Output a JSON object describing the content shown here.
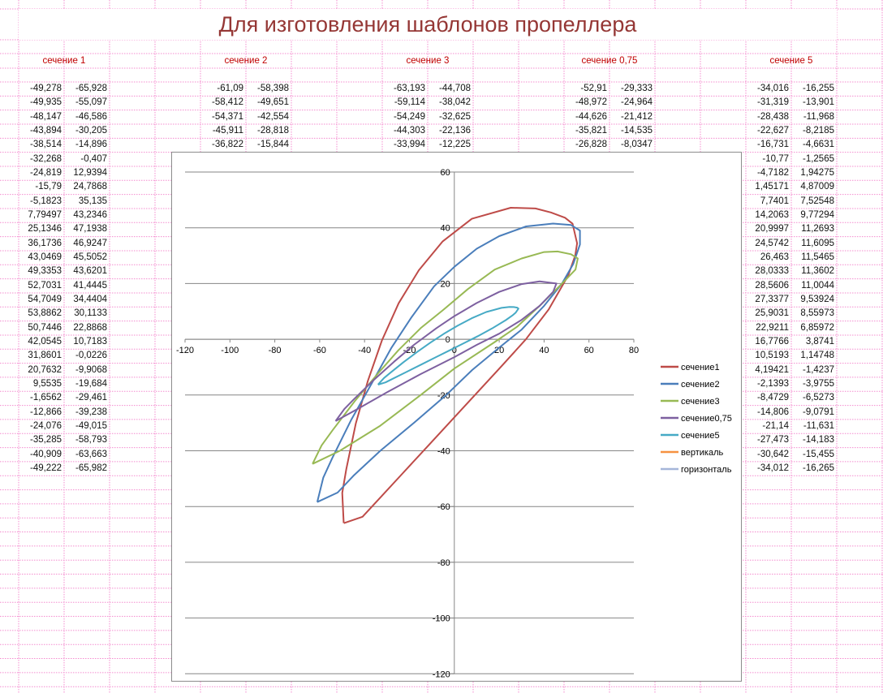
{
  "title": "Для изготовления шаблонов пропеллера",
  "sections": [
    {
      "label": "сечение 1",
      "rows": [
        [
          "-49,278",
          "-65,928"
        ],
        [
          "-49,935",
          "-55,097"
        ],
        [
          "-48,147",
          "-46,586"
        ],
        [
          "-43,894",
          "-30,205"
        ],
        [
          "-38,514",
          "-14,896"
        ],
        [
          "-32,268",
          "-0,407"
        ],
        [
          "-24,819",
          "12,9394"
        ],
        [
          "-15,79",
          "24,7868"
        ],
        [
          "-5,1823",
          "35,135"
        ],
        [
          "7,79497",
          "43,2346"
        ],
        [
          "25,1346",
          "47,1938"
        ],
        [
          "36,1736",
          "46,9247"
        ],
        [
          "43,0469",
          "45,5052"
        ],
        [
          "49,3353",
          "43,6201"
        ],
        [
          "52,7031",
          "41,4445"
        ],
        [
          "54,7049",
          "34,4404"
        ],
        [
          "53,8862",
          "30,1133"
        ],
        [
          "50,7446",
          "22,8868"
        ],
        [
          "42,0545",
          "10,7183"
        ],
        [
          "31,8601",
          "-0,0226"
        ],
        [
          "20,7632",
          "-9,9068"
        ],
        [
          "9,5535",
          "-19,684"
        ],
        [
          "-1,6562",
          "-29,461"
        ],
        [
          "-12,866",
          "-39,238"
        ],
        [
          "-24,076",
          "-49,015"
        ],
        [
          "-35,285",
          "-58,793"
        ],
        [
          "-40,909",
          "-63,663"
        ],
        [
          "-49,222",
          "-65,982"
        ]
      ]
    },
    {
      "label": "сечение 2",
      "rows": [
        [
          "-61,09",
          "-58,398"
        ],
        [
          "-58,412",
          "-49,651"
        ],
        [
          "-54,371",
          "-42,554"
        ],
        [
          "-45,911",
          "-28,818"
        ],
        [
          "-36,822",
          "-15,844"
        ]
      ]
    },
    {
      "label": "сечение 3",
      "rows": [
        [
          "-63,193",
          "-44,708"
        ],
        [
          "-59,114",
          "-38,042"
        ],
        [
          "-54,249",
          "-32,625"
        ],
        [
          "-44,303",
          "-22,136"
        ],
        [
          "-33,994",
          "-12,225"
        ]
      ]
    },
    {
      "label": "сечение 0,75",
      "rows": [
        [
          "-52,91",
          "-29,333"
        ],
        [
          "-48,972",
          "-24,964"
        ],
        [
          "-44,626",
          "-21,412"
        ],
        [
          "-35,821",
          "-14,535"
        ],
        [
          "-26,828",
          "-8,0347"
        ]
      ]
    },
    {
      "label": "сечение 5",
      "rows": [
        [
          "-34,016",
          "-16,255"
        ],
        [
          "-31,319",
          "-13,901"
        ],
        [
          "-28,438",
          "-11,968"
        ],
        [
          "-22,627",
          "-8,2185"
        ],
        [
          "-16,731",
          "-4,6631"
        ],
        [
          "-10,77",
          "-1,2565"
        ],
        [
          "-4,7182",
          "1,94275"
        ],
        [
          "1,45171",
          "4,87009"
        ],
        [
          "7,7401",
          "7,52548"
        ],
        [
          "14,2063",
          "9,77294"
        ],
        [
          "20,9997",
          "11,2693"
        ],
        [
          "24,5742",
          "11,6095"
        ],
        [
          "26,463",
          "11,5465"
        ],
        [
          "28,0333",
          "11,3602"
        ],
        [
          "28,5606",
          "11,0044"
        ],
        [
          "27,3377",
          "9,53924"
        ],
        [
          "25,9031",
          "8,55973"
        ],
        [
          "22,9211",
          "6,85972"
        ],
        [
          "16,7766",
          "3,8741"
        ],
        [
          "10,5193",
          "1,14748"
        ],
        [
          "4,19421",
          "-1,4237"
        ],
        [
          "-2,1393",
          "-3,9755"
        ],
        [
          "-8,4729",
          "-6,5273"
        ],
        [
          "-14,806",
          "-9,0791"
        ],
        [
          "-21,14",
          "-11,631"
        ],
        [
          "-27,473",
          "-14,183"
        ],
        [
          "-30,642",
          "-15,455"
        ],
        [
          "-34,012",
          "-16,265"
        ]
      ]
    }
  ],
  "chart_data": {
    "type": "scatter",
    "title": "",
    "xlabel": "",
    "ylabel": "",
    "xlim": [
      -120,
      80
    ],
    "ylim": [
      -120,
      60
    ],
    "xticks": [
      -120,
      -100,
      -80,
      -60,
      -40,
      -20,
      0,
      20,
      40,
      60,
      80
    ],
    "yticks": [
      -120,
      -100,
      -80,
      -60,
      -40,
      -20,
      0,
      20,
      40,
      60
    ],
    "grid": "horizontal",
    "legend": "right",
    "series": [
      {
        "name": "сечение1",
        "color": "#be4b48",
        "points": [
          [
            -49.278,
            -65.928
          ],
          [
            -49.935,
            -55.097
          ],
          [
            -48.147,
            -46.586
          ],
          [
            -43.894,
            -30.205
          ],
          [
            -38.514,
            -14.896
          ],
          [
            -32.268,
            -0.407
          ],
          [
            -24.819,
            12.9394
          ],
          [
            -15.79,
            24.7868
          ],
          [
            -5.1823,
            35.135
          ],
          [
            7.79497,
            43.2346
          ],
          [
            25.1346,
            47.1938
          ],
          [
            36.1736,
            46.9247
          ],
          [
            43.0469,
            45.5052
          ],
          [
            49.3353,
            43.6201
          ],
          [
            52.7031,
            41.4445
          ],
          [
            54.7049,
            34.4404
          ],
          [
            53.8862,
            30.1133
          ],
          [
            50.7446,
            22.8868
          ],
          [
            42.0545,
            10.7183
          ],
          [
            31.8601,
            -0.0226
          ],
          [
            20.7632,
            -9.9068
          ],
          [
            9.5535,
            -19.684
          ],
          [
            -1.6562,
            -29.461
          ],
          [
            -12.866,
            -39.238
          ],
          [
            -24.076,
            -49.015
          ],
          [
            -35.285,
            -58.793
          ],
          [
            -40.909,
            -63.663
          ],
          [
            -49.222,
            -65.982
          ]
        ]
      },
      {
        "name": "сечение2",
        "color": "#4a7ebb",
        "points": [
          [
            -61.09,
            -58.398
          ],
          [
            -58.412,
            -49.651
          ],
          [
            -54.371,
            -42.554
          ],
          [
            -45.911,
            -28.818
          ],
          [
            -36.822,
            -15.844
          ],
          [
            -28,
            -3
          ],
          [
            -19,
            8
          ],
          [
            -9,
            19
          ],
          [
            0,
            26
          ],
          [
            10,
            32.5
          ],
          [
            20,
            37
          ],
          [
            32,
            40.5
          ],
          [
            44,
            41.5
          ],
          [
            52,
            41
          ],
          [
            56,
            39
          ],
          [
            56,
            34
          ],
          [
            53,
            27
          ],
          [
            48,
            20
          ],
          [
            40,
            12
          ],
          [
            30,
            3.5
          ],
          [
            20,
            -3
          ],
          [
            8,
            -11
          ],
          [
            -3.6,
            -20
          ],
          [
            -18,
            -30
          ],
          [
            -33,
            -40
          ],
          [
            -45,
            -49
          ],
          [
            -52,
            -55
          ],
          [
            -61.09,
            -58.398
          ]
        ]
      },
      {
        "name": "сечение3",
        "color": "#98b954",
        "points": [
          [
            -63.193,
            -44.708
          ],
          [
            -59.114,
            -38.042
          ],
          [
            -54.249,
            -32.625
          ],
          [
            -44.303,
            -22.136
          ],
          [
            -33.994,
            -12.225
          ],
          [
            -25,
            -4
          ],
          [
            -15,
            4
          ],
          [
            -5,
            10.5
          ],
          [
            6,
            18
          ],
          [
            18,
            25
          ],
          [
            30,
            29
          ],
          [
            40,
            31.3
          ],
          [
            46,
            31.5
          ],
          [
            52,
            30.5
          ],
          [
            55,
            29
          ],
          [
            54,
            25
          ],
          [
            48,
            20
          ],
          [
            38,
            12
          ],
          [
            28,
            4.5
          ],
          [
            18,
            -1
          ],
          [
            0,
            -10.5
          ],
          [
            -15,
            -20
          ],
          [
            -33,
            -31
          ],
          [
            -51,
            -40
          ],
          [
            -63.193,
            -44.708
          ]
        ]
      },
      {
        "name": "сечение0,75",
        "color": "#7d60a0",
        "points": [
          [
            -52.91,
            -29.333
          ],
          [
            -48.972,
            -24.964
          ],
          [
            -44.626,
            -21.412
          ],
          [
            -35.821,
            -14.535
          ],
          [
            -26.828,
            -8.0347
          ],
          [
            -18,
            -2
          ],
          [
            -8,
            4
          ],
          [
            0,
            8.3
          ],
          [
            10,
            13
          ],
          [
            20,
            17
          ],
          [
            30,
            19.8
          ],
          [
            38,
            20.8
          ],
          [
            45.5,
            20
          ],
          [
            44,
            17
          ],
          [
            38,
            12
          ],
          [
            30,
            7
          ],
          [
            20,
            2
          ],
          [
            10,
            -2
          ],
          [
            0,
            -6.4
          ],
          [
            -15,
            -12.5
          ],
          [
            -30,
            -19
          ],
          [
            -42,
            -24.5
          ],
          [
            -52.91,
            -29.333
          ]
        ]
      },
      {
        "name": "сечение5",
        "color": "#46aac5",
        "points": [
          [
            -34.016,
            -16.255
          ],
          [
            -31.319,
            -13.901
          ],
          [
            -28.438,
            -11.968
          ],
          [
            -22.627,
            -8.2185
          ],
          [
            -16.731,
            -4.6631
          ],
          [
            -10.77,
            -1.2565
          ],
          [
            -4.7182,
            1.94275
          ],
          [
            1.45171,
            4.87009
          ],
          [
            7.7401,
            7.52548
          ],
          [
            14.2063,
            9.77294
          ],
          [
            20.9997,
            11.2693
          ],
          [
            24.5742,
            11.6095
          ],
          [
            26.463,
            11.5465
          ],
          [
            28.0333,
            11.3602
          ],
          [
            28.5606,
            11.0044
          ],
          [
            27.3377,
            9.53924
          ],
          [
            25.9031,
            8.55973
          ],
          [
            22.9211,
            6.85972
          ],
          [
            16.7766,
            3.8741
          ],
          [
            10.5193,
            1.14748
          ],
          [
            4.19421,
            -1.4237
          ],
          [
            -2.1393,
            -3.9755
          ],
          [
            -8.4729,
            -6.5273
          ],
          [
            -14.806,
            -9.0791
          ],
          [
            -21.14,
            -11.631
          ],
          [
            -27.473,
            -14.183
          ],
          [
            -30.642,
            -15.455
          ],
          [
            -34.012,
            -16.265
          ]
        ]
      },
      {
        "name": "вертикаль",
        "color": "#f69240",
        "points": []
      },
      {
        "name": "горизонталь",
        "color": "#a5b6d9",
        "points": []
      }
    ]
  }
}
